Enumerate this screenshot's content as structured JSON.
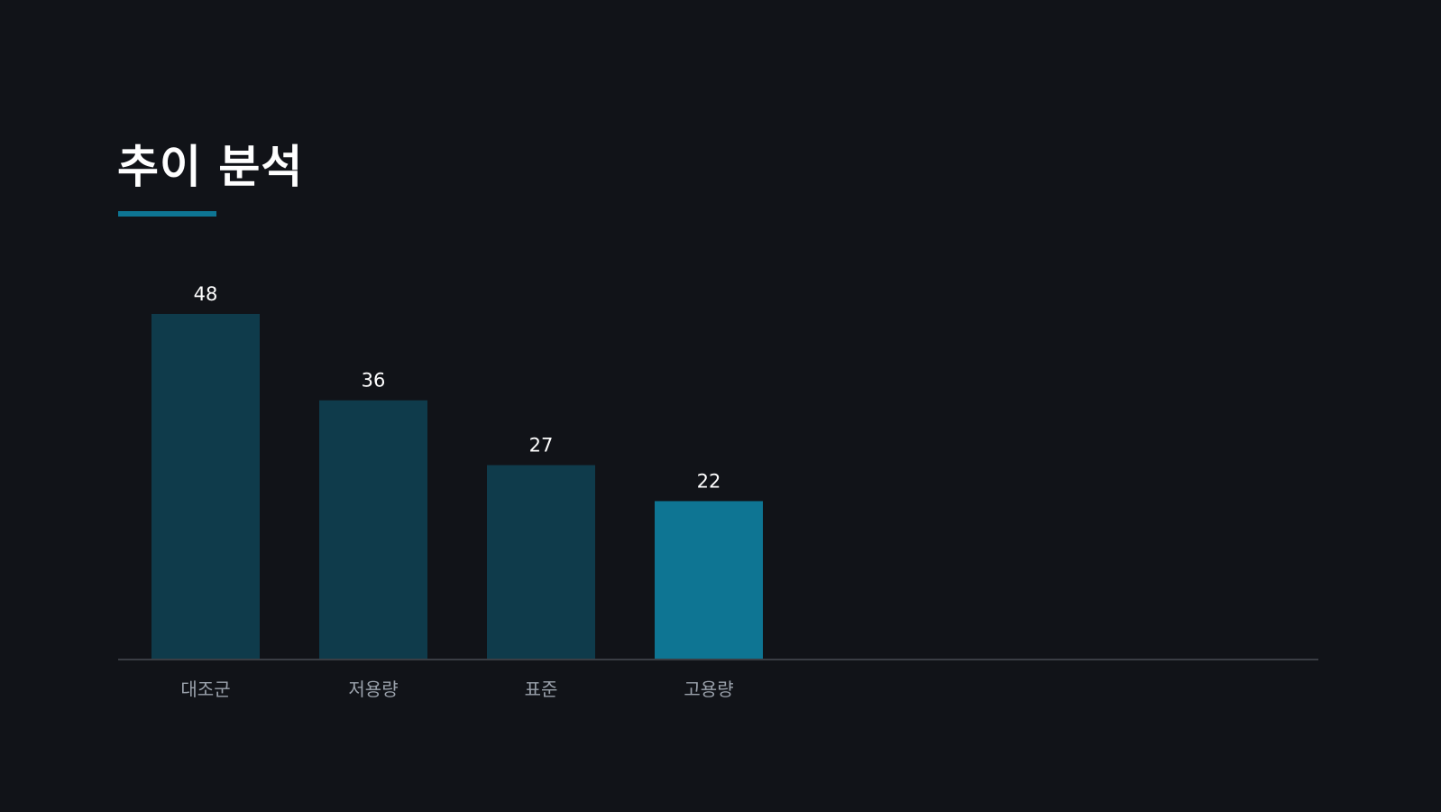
{
  "slide": {
    "title": "추이 분석"
  },
  "colors": {
    "background": "#111318",
    "accent": "#0E7593",
    "bar_muted": "#0F3B4B",
    "baseline": "#3A3D44"
  },
  "chart_data": {
    "type": "bar",
    "categories": [
      "대조군",
      "저용량",
      "표준",
      "고용량"
    ],
    "values": [
      48,
      36,
      27,
      22
    ],
    "highlight_index": 3,
    "data_labels": [
      "48",
      "36",
      "27",
      "22"
    ],
    "grid": false,
    "legend": "none"
  }
}
